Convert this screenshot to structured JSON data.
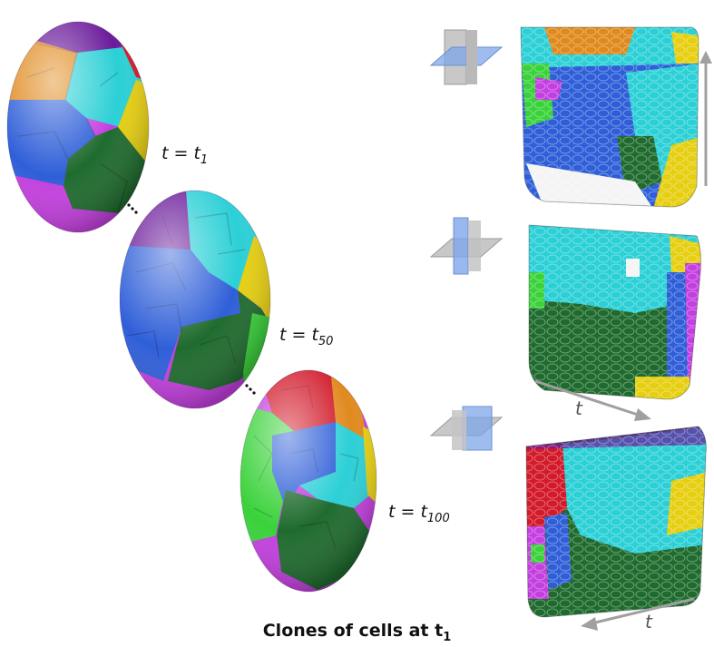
{
  "labels": {
    "t1": {
      "base": "t = t",
      "sub": "1"
    },
    "t50": {
      "base": "t = t",
      "sub": "50"
    },
    "t100": {
      "base": "t = t",
      "sub": "100"
    }
  },
  "axis_t_label": "t",
  "caption": {
    "base": "Clones of cells at t",
    "sub": "1"
  },
  "colors": {
    "purple": "#6a1b9a",
    "orange": "#e08a1e",
    "cyan": "#2bd0d6",
    "blue": "#2f5fd8",
    "yellow": "#e6cf10",
    "dark_green": "#1f6b2e",
    "magenta": "#c43fe0",
    "red": "#d21a2a",
    "green": "#3ad23a",
    "plane_blue": "#7fa6e8",
    "plane_gray": "#c8c8c8",
    "arrow_gray": "#a0a0a0"
  }
}
